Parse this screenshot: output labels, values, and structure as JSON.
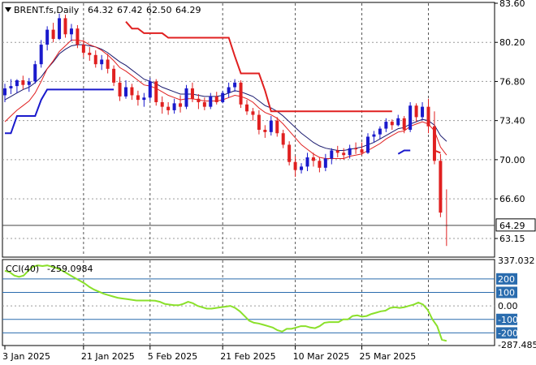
{
  "header": {
    "symbol": "BRENT.fs,Daily",
    "open": "64.32",
    "high": "67.42",
    "low": "62.50",
    "close": "64.29"
  },
  "indicator": {
    "label": "CCI(40)",
    "value": "-259.0984"
  },
  "colors": {
    "bull": "#1a1acc",
    "bear": "#e02020",
    "ma_fast": "#e02020",
    "ma_slow": "#1a1a6e",
    "stop_up": "#1a1acc",
    "stop_down": "#e02020",
    "cci": "#8ae02a",
    "level_band": "#2a6cae",
    "grid": "#9a9a9a"
  },
  "chart_data": [
    {
      "type": "candlestick",
      "title": "BRENT.fs,Daily",
      "ylim": [
        61.6,
        83.6
      ],
      "y_ticks": [
        "83.60",
        "80.20",
        "76.80",
        "73.40",
        "70.00",
        "66.60",
        "63.15"
      ],
      "last_price": "64.29",
      "x_ticks": [
        "3 Jan 2025",
        "21 Jan 2025",
        "5 Feb 2025",
        "21 Feb 2025",
        "10 Mar 2025",
        "25 Mar 2025"
      ],
      "ohlc": [
        [
          75.6,
          76.6,
          75.0,
          76.2
        ],
        [
          76.2,
          77.0,
          75.7,
          76.4
        ],
        [
          76.4,
          77.0,
          75.8,
          76.9
        ],
        [
          76.9,
          77.3,
          76.1,
          76.5
        ],
        [
          76.5,
          77.1,
          75.9,
          76.8
        ],
        [
          76.8,
          78.6,
          76.6,
          78.3
        ],
        [
          78.3,
          80.4,
          78.0,
          80.0
        ],
        [
          80.0,
          81.6,
          79.5,
          81.3
        ],
        [
          81.3,
          81.9,
          80.2,
          80.5
        ],
        [
          80.5,
          82.7,
          80.4,
          82.3
        ],
        [
          82.3,
          82.6,
          80.6,
          80.9
        ],
        [
          80.9,
          81.8,
          80.3,
          81.4
        ],
        [
          81.4,
          81.7,
          79.7,
          80.0
        ],
        [
          80.0,
          80.4,
          78.9,
          79.3
        ],
        [
          79.3,
          79.8,
          78.6,
          79.1
        ],
        [
          79.1,
          79.5,
          78.0,
          78.3
        ],
        [
          78.3,
          79.1,
          77.8,
          78.7
        ],
        [
          78.7,
          79.2,
          77.5,
          77.9
        ],
        [
          77.9,
          78.2,
          76.4,
          76.7
        ],
        [
          76.7,
          77.2,
          75.1,
          75.5
        ],
        [
          75.5,
          76.9,
          75.3,
          76.3
        ],
        [
          76.3,
          76.6,
          75.2,
          75.6
        ],
        [
          75.6,
          76.0,
          74.7,
          75.2
        ],
        [
          75.2,
          75.8,
          74.6,
          75.4
        ],
        [
          75.4,
          77.1,
          75.1,
          76.8
        ],
        [
          76.8,
          77.0,
          74.7,
          75.0
        ],
        [
          75.0,
          75.5,
          74.0,
          74.6
        ],
        [
          74.6,
          75.0,
          73.9,
          74.3
        ],
        [
          74.3,
          75.3,
          74.0,
          74.9
        ],
        [
          74.9,
          75.6,
          74.1,
          74.6
        ],
        [
          74.6,
          76.5,
          74.4,
          76.2
        ],
        [
          76.2,
          76.7,
          75.0,
          75.3
        ],
        [
          75.3,
          75.7,
          74.4,
          75.0
        ],
        [
          75.0,
          75.4,
          74.3,
          74.6
        ],
        [
          74.6,
          75.8,
          74.4,
          75.5
        ],
        [
          75.5,
          75.9,
          74.8,
          75.0
        ],
        [
          75.0,
          76.0,
          74.9,
          75.8
        ],
        [
          75.8,
          76.7,
          75.4,
          76.3
        ],
        [
          76.3,
          77.0,
          75.9,
          76.7
        ],
        [
          76.7,
          76.9,
          74.5,
          74.8
        ],
        [
          74.8,
          75.2,
          73.9,
          74.2
        ],
        [
          74.2,
          74.5,
          73.4,
          73.9
        ],
        [
          73.9,
          74.3,
          72.2,
          72.6
        ],
        [
          72.6,
          73.0,
          71.9,
          72.4
        ],
        [
          72.4,
          73.8,
          72.1,
          73.4
        ],
        [
          73.4,
          73.7,
          72.0,
          72.3
        ],
        [
          72.3,
          72.6,
          71.0,
          71.3
        ],
        [
          71.3,
          71.6,
          69.5,
          69.8
        ],
        [
          69.8,
          70.3,
          68.5,
          69.1
        ],
        [
          69.1,
          69.7,
          68.8,
          69.4
        ],
        [
          69.4,
          70.6,
          69.0,
          70.2
        ],
        [
          70.2,
          70.6,
          69.4,
          69.9
        ],
        [
          69.9,
          70.2,
          68.9,
          69.3
        ],
        [
          69.3,
          70.5,
          69.0,
          70.1
        ],
        [
          70.1,
          71.0,
          69.6,
          70.8
        ],
        [
          70.8,
          71.2,
          70.2,
          70.6
        ],
        [
          70.6,
          71.0,
          70.0,
          70.4
        ],
        [
          70.4,
          71.3,
          70.1,
          71.0
        ],
        [
          71.0,
          71.5,
          70.5,
          70.9
        ],
        [
          70.9,
          71.5,
          70.4,
          70.6
        ],
        [
          70.6,
          72.3,
          70.5,
          72.0
        ],
        [
          72.0,
          72.5,
          71.5,
          72.2
        ],
        [
          72.2,
          72.9,
          71.8,
          72.7
        ],
        [
          72.7,
          73.6,
          72.4,
          73.3
        ],
        [
          73.3,
          73.5,
          72.6,
          73.0
        ],
        [
          73.0,
          73.9,
          72.9,
          73.6
        ],
        [
          73.6,
          73.8,
          72.3,
          72.6
        ],
        [
          72.6,
          75.0,
          72.4,
          74.7
        ],
        [
          74.7,
          74.9,
          73.3,
          73.7
        ],
        [
          73.7,
          75.0,
          73.4,
          74.6
        ],
        [
          74.6,
          75.3,
          72.3,
          72.9
        ],
        [
          72.9,
          74.2,
          69.6,
          69.9
        ],
        [
          69.9,
          70.5,
          65.0,
          65.4
        ],
        [
          64.32,
          67.42,
          62.5,
          64.29
        ]
      ],
      "ma_fast": [
        73.3,
        73.8,
        74.3,
        74.7,
        75.1,
        75.8,
        76.8,
        77.9,
        78.6,
        79.4,
        79.9,
        80.4,
        80.4,
        80.3,
        80.0,
        79.8,
        79.5,
        79.1,
        78.6,
        78.0,
        77.7,
        77.3,
        76.9,
        76.5,
        76.4,
        76.2,
        75.9,
        75.6,
        75.4,
        75.2,
        75.3,
        75.3,
        75.2,
        75.1,
        75.1,
        75.1,
        75.2,
        75.4,
        75.6,
        75.5,
        75.3,
        75.0,
        74.5,
        74.1,
        73.9,
        73.6,
        73.1,
        72.5,
        71.9,
        71.3,
        70.9,
        70.5,
        70.2,
        70.1,
        70.1,
        70.1,
        70.1,
        70.3,
        70.4,
        70.5,
        70.8,
        71.1,
        71.4,
        71.8,
        72.1,
        72.4,
        72.5,
        72.9,
        73.1,
        73.3,
        73.1,
        72.5,
        71.1,
        70.4
      ],
      "ma_slow": [
        75.2,
        75.5,
        75.8,
        76.1,
        76.3,
        76.7,
        77.2,
        77.9,
        78.5,
        79.2,
        79.6,
        79.9,
        80.0,
        80.0,
        79.9,
        79.8,
        79.6,
        79.3,
        78.9,
        78.5,
        78.2,
        77.8,
        77.4,
        77.0,
        76.8,
        76.6,
        76.3,
        76.1,
        75.9,
        75.7,
        75.7,
        75.7,
        75.6,
        75.5,
        75.5,
        75.5,
        75.6,
        75.8,
        76.0,
        75.9,
        75.7,
        75.5,
        75.1,
        74.7,
        74.5,
        74.2,
        73.8,
        73.3,
        72.8,
        72.3,
        71.9,
        71.5,
        71.2,
        71.0,
        70.9,
        70.8,
        70.8,
        70.9,
        71.0,
        71.1,
        71.3,
        71.5,
        71.8,
        72.1,
        72.4,
        72.7,
        72.8,
        73.1,
        73.3,
        73.5,
        73.4,
        73.0,
        72.1,
        71.6
      ],
      "stop_up": [
        [
          0,
          72.3
        ],
        [
          1,
          72.3
        ],
        [
          2,
          73.8
        ],
        [
          3,
          73.8
        ],
        [
          4,
          73.8
        ],
        [
          5,
          73.8
        ],
        [
          6,
          75.2
        ],
        [
          7,
          76.1
        ],
        [
          8,
          76.1
        ],
        [
          9,
          76.1
        ],
        [
          10,
          76.1
        ],
        [
          11,
          76.1
        ],
        [
          12,
          76.1
        ],
        [
          13,
          76.1
        ],
        [
          14,
          76.1
        ],
        [
          15,
          76.1
        ],
        [
          16,
          76.1
        ],
        [
          17,
          76.1
        ],
        [
          18,
          76.1
        ],
        [
          65,
          70.5
        ],
        [
          66,
          70.8
        ],
        [
          67,
          70.8
        ]
      ],
      "stop_down": [
        [
          20,
          82.0
        ],
        [
          21,
          81.4
        ],
        [
          22,
          81.4
        ],
        [
          23,
          81.0
        ],
        [
          24,
          81.0
        ],
        [
          25,
          81.0
        ],
        [
          26,
          81.0
        ],
        [
          27,
          80.6
        ],
        [
          28,
          80.6
        ],
        [
          29,
          80.6
        ],
        [
          30,
          80.6
        ],
        [
          31,
          80.6
        ],
        [
          32,
          80.6
        ],
        [
          33,
          80.6
        ],
        [
          34,
          80.6
        ],
        [
          35,
          80.6
        ],
        [
          36,
          80.6
        ],
        [
          37,
          80.6
        ],
        [
          38,
          79.0
        ],
        [
          39,
          77.5
        ],
        [
          40,
          77.5
        ],
        [
          41,
          77.5
        ],
        [
          42,
          77.5
        ],
        [
          43,
          76.0
        ],
        [
          44,
          74.2
        ],
        [
          45,
          74.2
        ],
        [
          46,
          74.2
        ],
        [
          47,
          74.2
        ],
        [
          48,
          74.2
        ],
        [
          49,
          74.2
        ],
        [
          50,
          74.2
        ],
        [
          51,
          74.2
        ],
        [
          52,
          74.2
        ],
        [
          53,
          74.2
        ],
        [
          54,
          74.2
        ],
        [
          55,
          74.2
        ],
        [
          56,
          74.2
        ],
        [
          57,
          74.2
        ],
        [
          58,
          74.2
        ],
        [
          59,
          74.2
        ],
        [
          60,
          74.2
        ],
        [
          61,
          74.2
        ],
        [
          62,
          74.2
        ],
        [
          63,
          74.2
        ],
        [
          64,
          74.2
        ],
        [
          71,
          70.8
        ],
        [
          72,
          70.6
        ]
      ]
    },
    {
      "type": "line",
      "title": "CCI(40)",
      "ylim": [
        -287.485,
        337.032
      ],
      "y_ticks": [
        "337.032",
        "200",
        "100",
        "0.00",
        "-100",
        "-200",
        "-287.485"
      ],
      "level_lines": [
        200,
        100,
        -100,
        -200
      ],
      "values": [
        260,
        250,
        225,
        215,
        225,
        260,
        290,
        300,
        295,
        300,
        290,
        280,
        265,
        245,
        225,
        205,
        185,
        165,
        140,
        120,
        105,
        90,
        80,
        70,
        60,
        55,
        50,
        45,
        40,
        40,
        40,
        40,
        38,
        30,
        15,
        10,
        5,
        5,
        15,
        30,
        20,
        0,
        -10,
        -20,
        -20,
        -15,
        -10,
        -5,
        0,
        -15,
        -40,
        -75,
        -110,
        -125,
        -130,
        -140,
        -150,
        -160,
        -180,
        -190,
        -170,
        -170,
        -160,
        -150,
        -150,
        -160,
        -165,
        -150,
        -125,
        -120,
        -120,
        -120,
        -100,
        -100,
        -75,
        -70,
        -80,
        -75,
        -60,
        -50,
        -40,
        -35,
        -15,
        -10,
        -15,
        -10,
        0,
        10,
        25,
        10,
        -30,
        -100,
        -150,
        -250,
        -259.0984
      ]
    }
  ]
}
